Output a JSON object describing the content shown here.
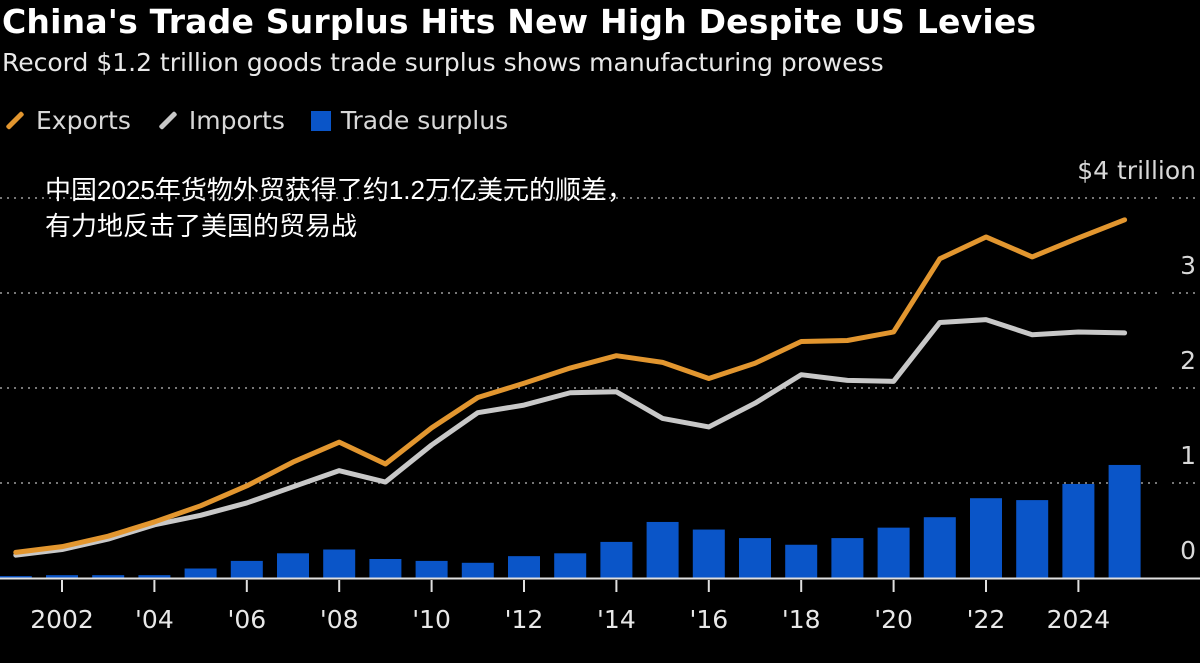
{
  "colors": {
    "exports": "#e2962f",
    "imports": "#c8c8c8",
    "surplus": "#0a55c8",
    "grid": "#777777"
  },
  "chart_data": {
    "type": "line+bar",
    "title": "China's Trade Surplus Hits New High Despite US Levies",
    "subtitle": "Record $1.2 trillion goods trade surplus shows manufacturing prowess",
    "annotation": [
      "中国2025年货物外贸获得了约1.2万亿美元的顺差，",
      "有力地反击了美国的贸易战"
    ],
    "legend": [
      "Exports",
      "Imports",
      "Trade surplus"
    ],
    "legend_position": "top-left",
    "x": [
      2001,
      2002,
      2003,
      2004,
      2005,
      2006,
      2007,
      2008,
      2009,
      2010,
      2011,
      2012,
      2013,
      2014,
      2015,
      2016,
      2017,
      2018,
      2019,
      2020,
      2021,
      2022,
      2023,
      2024,
      2025
    ],
    "series": [
      {
        "name": "Exports",
        "type": "line",
        "values": [
          0.27,
          0.33,
          0.44,
          0.59,
          0.76,
          0.97,
          1.22,
          1.43,
          1.2,
          1.58,
          1.9,
          2.05,
          2.21,
          2.34,
          2.27,
          2.1,
          2.26,
          2.49,
          2.5,
          2.59,
          3.36,
          3.59,
          3.38,
          3.58,
          3.77
        ]
      },
      {
        "name": "Imports",
        "type": "line",
        "values": [
          0.24,
          0.3,
          0.41,
          0.56,
          0.66,
          0.79,
          0.96,
          1.13,
          1.01,
          1.4,
          1.74,
          1.82,
          1.95,
          1.96,
          1.68,
          1.59,
          1.84,
          2.14,
          2.08,
          2.07,
          2.69,
          2.72,
          2.56,
          2.59,
          2.58
        ]
      },
      {
        "name": "Trade surplus",
        "type": "bar",
        "values": [
          0.02,
          0.03,
          0.03,
          0.03,
          0.1,
          0.18,
          0.26,
          0.3,
          0.2,
          0.18,
          0.16,
          0.23,
          0.26,
          0.38,
          0.59,
          0.51,
          0.42,
          0.35,
          0.42,
          0.53,
          0.64,
          0.84,
          0.82,
          0.99,
          1.19
        ]
      }
    ],
    "xticks": [
      {
        "year": 2002,
        "label": "2002"
      },
      {
        "year": 2004,
        "label": "'04"
      },
      {
        "year": 2006,
        "label": "'06"
      },
      {
        "year": 2008,
        "label": "'08"
      },
      {
        "year": 2010,
        "label": "'10"
      },
      {
        "year": 2012,
        "label": "'12"
      },
      {
        "year": 2014,
        "label": "'14"
      },
      {
        "year": 2016,
        "label": "'16"
      },
      {
        "year": 2018,
        "label": "'18"
      },
      {
        "year": 2020,
        "label": "'20"
      },
      {
        "year": 2022,
        "label": "'22"
      },
      {
        "year": 2024,
        "label": "2024"
      }
    ],
    "yticks": [
      {
        "value": 0,
        "label": "0"
      },
      {
        "value": 1,
        "label": "1"
      },
      {
        "value": 2,
        "label": "2"
      },
      {
        "value": 3,
        "label": "3"
      },
      {
        "value": 4,
        "label": "$4 trillion"
      }
    ],
    "ylim": [
      0,
      4
    ],
    "ylabel": "",
    "xlabel": "",
    "grid": true
  }
}
